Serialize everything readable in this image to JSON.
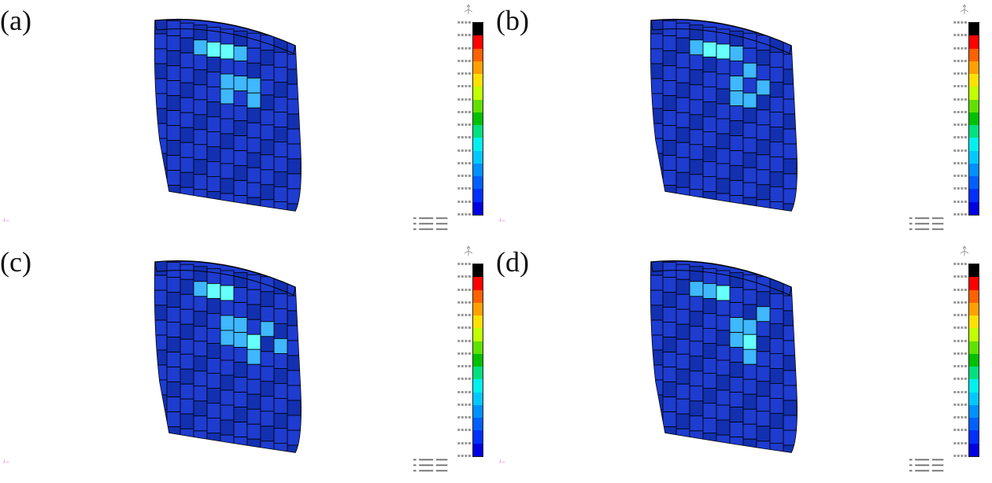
{
  "panels": [
    {
      "label": "(a)"
    },
    {
      "label": "(b)"
    },
    {
      "label": "(c)"
    },
    {
      "label": "(d)"
    }
  ],
  "colorbar_colors": [
    "#000000",
    "#ff0000",
    "#ff6000",
    "#ffa000",
    "#ffe000",
    "#c0ff00",
    "#60e000",
    "#00c000",
    "#00e080",
    "#00f0f0",
    "#00c8ff",
    "#0090ff",
    "#0060ff",
    "#0030ff",
    "#0000e0"
  ],
  "colors": {
    "model_base": "#1e3ccf",
    "model_dark": "#1230b0",
    "highlight_light": "#3fb8ff",
    "highlight_cyan": "#66ffff",
    "element_edge": "#000000"
  }
}
